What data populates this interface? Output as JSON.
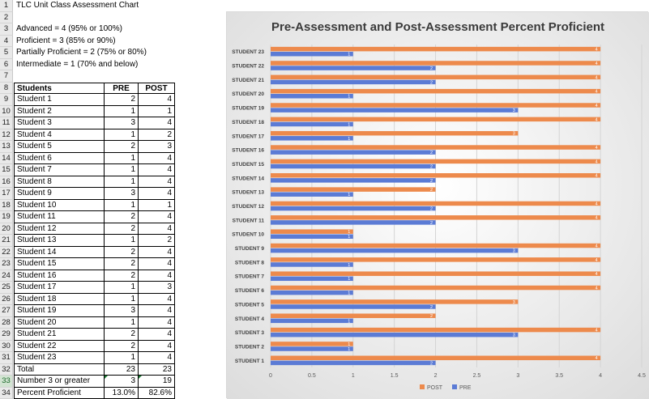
{
  "sheet": {
    "rows": [
      {
        "n": "1",
        "a": "TLC Unit Class Assessment Chart",
        "b": "",
        "c": ""
      },
      {
        "n": "2",
        "a": "",
        "b": "",
        "c": ""
      },
      {
        "n": "3",
        "a": "Advanced = 4 (95% or 100%)",
        "b": "",
        "c": ""
      },
      {
        "n": "4",
        "a": "Proficient = 3 (85% or 90%)",
        "b": "",
        "c": ""
      },
      {
        "n": "5",
        "a": "Partially Proficient = 2 (75% or 80%)",
        "b": "",
        "c": ""
      },
      {
        "n": "6",
        "a": "Intermediate = 1 (70% and below)",
        "b": "",
        "c": ""
      },
      {
        "n": "7",
        "a": "",
        "b": "",
        "c": ""
      },
      {
        "n": "8",
        "a": "Students",
        "b": "PRE",
        "c": "POST"
      },
      {
        "n": "9",
        "a": "Student 1",
        "b": "2",
        "c": "4"
      },
      {
        "n": "10",
        "a": "Student 2",
        "b": "1",
        "c": "1"
      },
      {
        "n": "11",
        "a": "Student 3",
        "b": "3",
        "c": "4"
      },
      {
        "n": "12",
        "a": "Student 4",
        "b": "1",
        "c": "2"
      },
      {
        "n": "13",
        "a": "Student 5",
        "b": "2",
        "c": "3"
      },
      {
        "n": "14",
        "a": "Student 6",
        "b": "1",
        "c": "4"
      },
      {
        "n": "15",
        "a": "Student 7",
        "b": "1",
        "c": "4"
      },
      {
        "n": "16",
        "a": "Student 8",
        "b": "1",
        "c": "4"
      },
      {
        "n": "17",
        "a": "Student 9",
        "b": "3",
        "c": "4"
      },
      {
        "n": "18",
        "a": "Student 10",
        "b": "1",
        "c": "1"
      },
      {
        "n": "19",
        "a": "Student 11",
        "b": "2",
        "c": "4"
      },
      {
        "n": "20",
        "a": "Student 12",
        "b": "2",
        "c": "4"
      },
      {
        "n": "21",
        "a": "Student 13",
        "b": "1",
        "c": "2"
      },
      {
        "n": "22",
        "a": "Student 14",
        "b": "2",
        "c": "4"
      },
      {
        "n": "23",
        "a": "Student 15",
        "b": "2",
        "c": "4"
      },
      {
        "n": "24",
        "a": "Student 16",
        "b": "2",
        "c": "4"
      },
      {
        "n": "25",
        "a": "Student 17",
        "b": "1",
        "c": "3"
      },
      {
        "n": "26",
        "a": "Student 18",
        "b": "1",
        "c": "4"
      },
      {
        "n": "27",
        "a": "Student 19",
        "b": "3",
        "c": "4"
      },
      {
        "n": "28",
        "a": "Student 20",
        "b": "1",
        "c": "4"
      },
      {
        "n": "29",
        "a": "Student 21",
        "b": "2",
        "c": "4"
      },
      {
        "n": "30",
        "a": "Student 22",
        "b": "2",
        "c": "4"
      },
      {
        "n": "31",
        "a": "Student 23",
        "b": "1",
        "c": "4"
      },
      {
        "n": "32",
        "a": "Total",
        "b": "23",
        "c": "23"
      },
      {
        "n": "33",
        "a": "Number 3 or greater",
        "b": "3",
        "c": "19"
      },
      {
        "n": "34",
        "a": "Percent Proficient",
        "b": "13.0%",
        "c": "82.6%"
      }
    ]
  },
  "chart_data": {
    "type": "bar",
    "orientation": "horizontal",
    "title": "Pre-Assessment and Post-Assessment Percent Proficient",
    "categories": [
      "STUDENT 1",
      "STUDENT 2",
      "STUDENT 3",
      "STUDENT 4",
      "STUDENT 5",
      "STUDENT 6",
      "STUDENT 7",
      "STUDENT 8",
      "STUDENT 9",
      "STUDENT 10",
      "STUDENT 11",
      "STUDENT 12",
      "STUDENT 13",
      "STUDENT 14",
      "STUDENT 15",
      "STUDENT 16",
      "STUDENT 17",
      "STUDENT 18",
      "STUDENT 19",
      "STUDENT 20",
      "STUDENT 21",
      "STUDENT 22",
      "STUDENT 23"
    ],
    "series": [
      {
        "name": "PRE",
        "color": "#5b7bd5",
        "values": [
          2,
          1,
          3,
          1,
          2,
          1,
          1,
          1,
          3,
          1,
          2,
          2,
          1,
          2,
          2,
          2,
          1,
          1,
          3,
          1,
          2,
          2,
          1
        ]
      },
      {
        "name": "POST",
        "color": "#ed8a4c",
        "values": [
          4,
          1,
          4,
          2,
          3,
          4,
          4,
          4,
          4,
          1,
          4,
          4,
          2,
          4,
          4,
          4,
          3,
          4,
          4,
          4,
          4,
          4,
          4
        ]
      }
    ],
    "xlim": [
      0,
      4.5
    ],
    "xticks": [
      "0",
      "0.5",
      "1",
      "1.5",
      "2",
      "2.5",
      "3",
      "3.5",
      "4",
      "4.5"
    ],
    "grid": true,
    "data_labels": true,
    "legend": "bottom",
    "legend_order": [
      "POST",
      "PRE"
    ]
  }
}
